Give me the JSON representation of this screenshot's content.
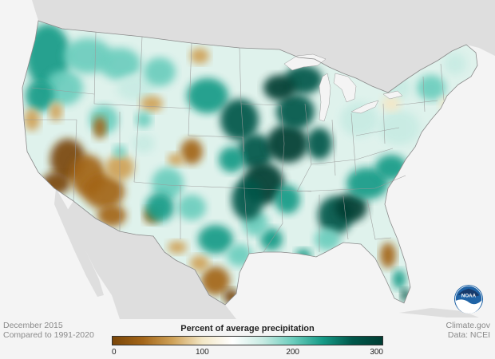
{
  "caption": {
    "month": "December 2015",
    "baseline": "Compared to 1991-2020",
    "credit": "Climate.gov",
    "source": "Data: NCEI"
  },
  "legend": {
    "title": "Percent of average precipitation",
    "ticks": [
      "0",
      "100",
      "200",
      "300"
    ],
    "tick_values": [
      0,
      100,
      200,
      300
    ],
    "range": [
      0,
      300
    ],
    "colors": [
      "#7a4608",
      "#a36518",
      "#cfa157",
      "#f3e7c6",
      "#ffffff",
      "#c8ebe3",
      "#6ccdbd",
      "#169b87",
      "#00574a",
      "#003d33"
    ]
  },
  "logo": {
    "text": "NOAA",
    "color": "#1f63a6"
  },
  "map": {
    "land_color": "#ffffff",
    "background_color": "#f4f4f4",
    "neighbor_color": "#dedede",
    "water_color": "#f4f4f4",
    "boundary_color": "#9a9a9a"
  }
}
